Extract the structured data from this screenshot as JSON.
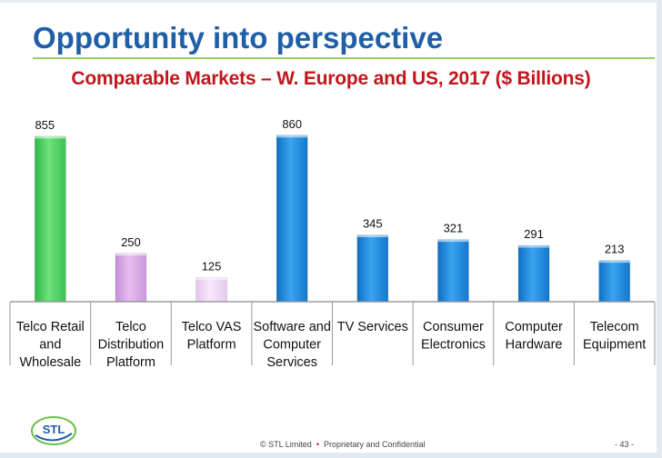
{
  "slide": {
    "title": "Opportunity into perspective",
    "subtitle": "Comparable Markets – W. Europe and US, 2017 ($ Billions)",
    "footer": {
      "copyright": "© STL Limited",
      "separator": "•",
      "confidential": "Proprietary and Confidential",
      "page": "- 43 -"
    },
    "logo_text": "STL"
  },
  "colors": {
    "title": "#1f5fa7",
    "subtitle": "#c2161c",
    "rule": "#9ccd6a",
    "bar_green": "#5edc70",
    "bar_purple": "#dcaee8",
    "bar_light_purple": "#f1dcf6",
    "bar_blue": "#1f8fe0"
  },
  "chart_data": {
    "type": "bar",
    "title": "Comparable Markets – W. Europe and US, 2017 ($ Billions)",
    "xlabel": "",
    "ylabel": "",
    "ylim": [
      0,
      900
    ],
    "grid": false,
    "categories": [
      [
        "Telco Retail",
        "and",
        "Wholesale"
      ],
      [
        "Telco",
        "Distribution",
        "Platform"
      ],
      [
        "Telco VAS",
        "Platform"
      ],
      [
        "Software and",
        "Computer",
        "Services"
      ],
      [
        "TV Services"
      ],
      [
        "Consumer",
        "Electronics"
      ],
      [
        "Computer",
        "Hardware"
      ],
      [
        "Telecom",
        "Equipment"
      ]
    ],
    "values": [
      855,
      250,
      125,
      860,
      345,
      321,
      291,
      213
    ],
    "labels": [
      "855",
      "250",
      "125",
      "860",
      "345",
      "321",
      "291",
      "213"
    ],
    "bar_colors": [
      "green",
      "purple",
      "light_purple",
      "blue",
      "blue",
      "blue",
      "blue",
      "blue"
    ]
  }
}
